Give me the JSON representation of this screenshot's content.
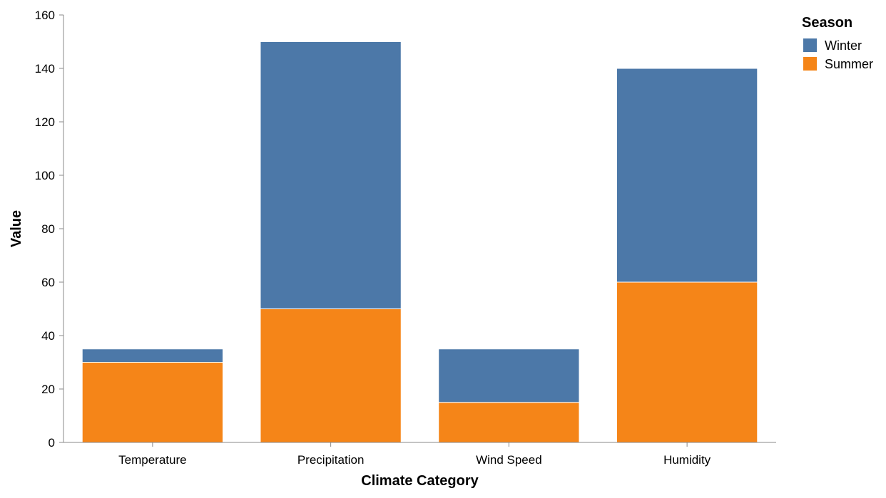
{
  "chart_data": {
    "type": "bar",
    "stacked": true,
    "categories": [
      "Temperature",
      "Precipitation",
      "Wind Speed",
      "Humidity"
    ],
    "series": [
      {
        "name": "Summer",
        "values": [
          30,
          50,
          15,
          60
        ],
        "color": "#f58518"
      },
      {
        "name": "Winter",
        "values": [
          5,
          100,
          20,
          80
        ],
        "color": "#4c78a8"
      }
    ],
    "xlabel": "Climate Category",
    "ylabel": "Value",
    "ylim": [
      0,
      160
    ],
    "yticks": [
      0,
      20,
      40,
      60,
      80,
      100,
      120,
      140,
      160
    ],
    "grid": false,
    "legend": {
      "title": "Season",
      "placement": "top-right",
      "entries": [
        {
          "name": "Winter",
          "color": "#4c78a8"
        },
        {
          "name": "Summer",
          "color": "#f58518"
        }
      ]
    }
  }
}
